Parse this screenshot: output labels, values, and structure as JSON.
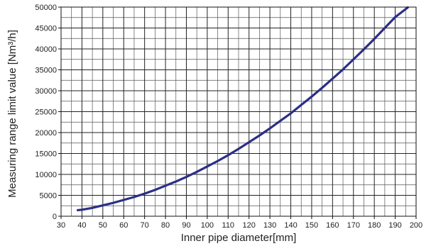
{
  "chart_data": {
    "type": "line",
    "title": "",
    "xlabel": "Inner pipe diameter[mm]",
    "ylabel": "Measuring range limit value [Nm³/h]",
    "xlim": [
      30,
      200
    ],
    "ylim": [
      0,
      50000
    ],
    "xticks": [
      30,
      40,
      50,
      60,
      70,
      80,
      90,
      100,
      110,
      120,
      130,
      140,
      150,
      160,
      170,
      180,
      190,
      200
    ],
    "yticks": [
      0,
      5000,
      10000,
      15000,
      20000,
      25000,
      30000,
      35000,
      40000,
      45000,
      50000
    ],
    "x_minor_step": 5,
    "y_minor_step": 2500,
    "grid": true,
    "series": [
      {
        "color": "#2b2f86",
        "x": [
          38,
          40,
          45,
          50,
          55,
          60,
          65,
          70,
          75,
          80,
          85,
          90,
          95,
          100,
          105,
          110,
          115,
          120,
          125,
          130,
          135,
          140,
          145,
          150,
          155,
          160,
          165,
          170,
          175,
          180,
          185,
          190,
          196
        ],
        "y": [
          1450,
          1550,
          2000,
          2600,
          3200,
          3900,
          4600,
          5400,
          6300,
          7300,
          8300,
          9400,
          10600,
          11900,
          13200,
          14600,
          16100,
          17700,
          19300,
          21000,
          22800,
          24600,
          26600,
          28600,
          30700,
          32900,
          35100,
          37500,
          39900,
          42400,
          45000,
          47600,
          49900
        ]
      }
    ]
  }
}
